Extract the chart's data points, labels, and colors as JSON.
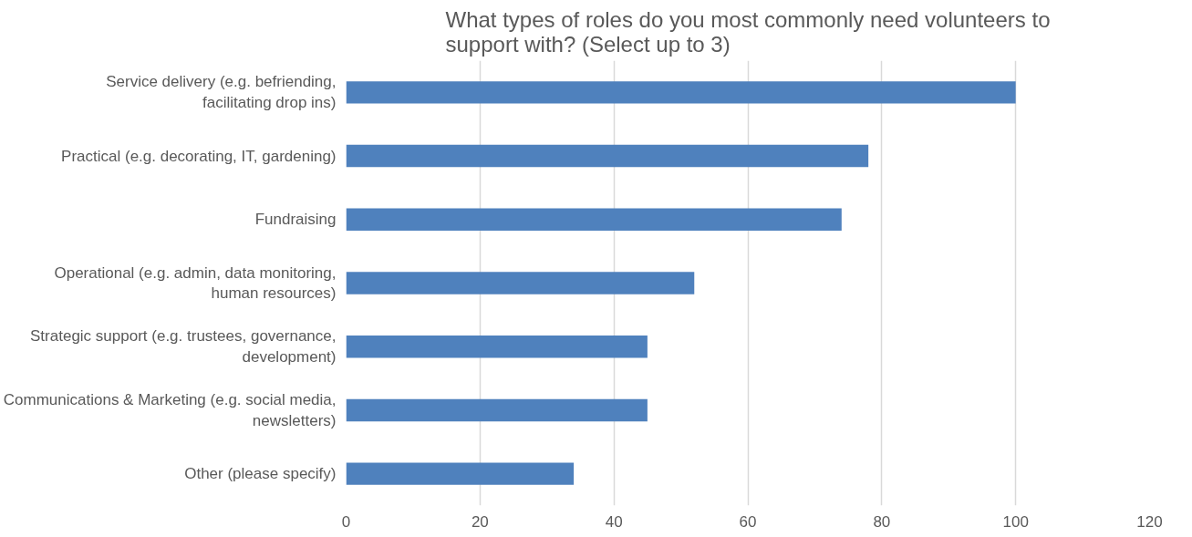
{
  "chart_data": {
    "type": "bar",
    "orientation": "horizontal",
    "title": "What types of roles do you most commonly need volunteers to support with? (Select up to 3)",
    "categories": [
      "Service delivery (e.g. befriending, facilitating drop ins)",
      "Practical (e.g. decorating, IT, gardening)",
      "Fundraising",
      "Operational (e.g. admin, data monitoring, human resources)",
      "Strategic support (e.g. trustees, governance, development)",
      "Communications & Marketing (e.g. social media, newsletters)",
      "Other (please specify)"
    ],
    "values": [
      100,
      78,
      74,
      52,
      45,
      45,
      34
    ],
    "color": "#4f81bd",
    "xlim": [
      0,
      120
    ],
    "xticks": [
      0,
      20,
      40,
      60,
      80,
      100,
      120
    ],
    "grid": "x"
  }
}
